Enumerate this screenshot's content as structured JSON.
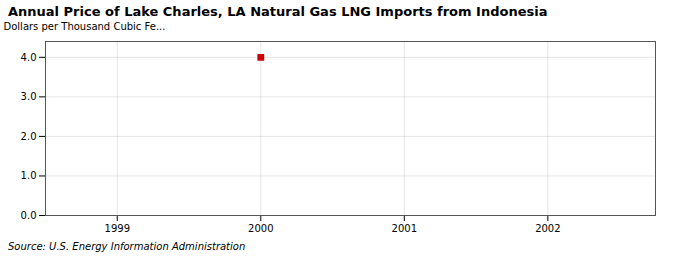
{
  "chart_data": {
    "type": "scatter",
    "title": "Annual Price of Lake Charles, LA Natural Gas LNG Imports from Indonesia",
    "ylabel": "Dollars per Thousand Cubic Fe...",
    "source": "Source: U.S. Energy Information Administration",
    "x": [
      2000
    ],
    "values": [
      4.0
    ],
    "color": "#cc0000",
    "marker": "square",
    "xlim": [
      1998.5,
      2002.75
    ],
    "xticks": [
      1999,
      2000,
      2001,
      2002
    ],
    "ylim": [
      0.0,
      4.4
    ],
    "yticks": [
      {
        "value": 0,
        "label": "0.0"
      },
      {
        "value": 1,
        "label": "1.0"
      },
      {
        "value": 2,
        "label": "2.0"
      },
      {
        "value": 3,
        "label": "3.0"
      },
      {
        "value": 4,
        "label": "4.0"
      }
    ],
    "grid": true
  }
}
